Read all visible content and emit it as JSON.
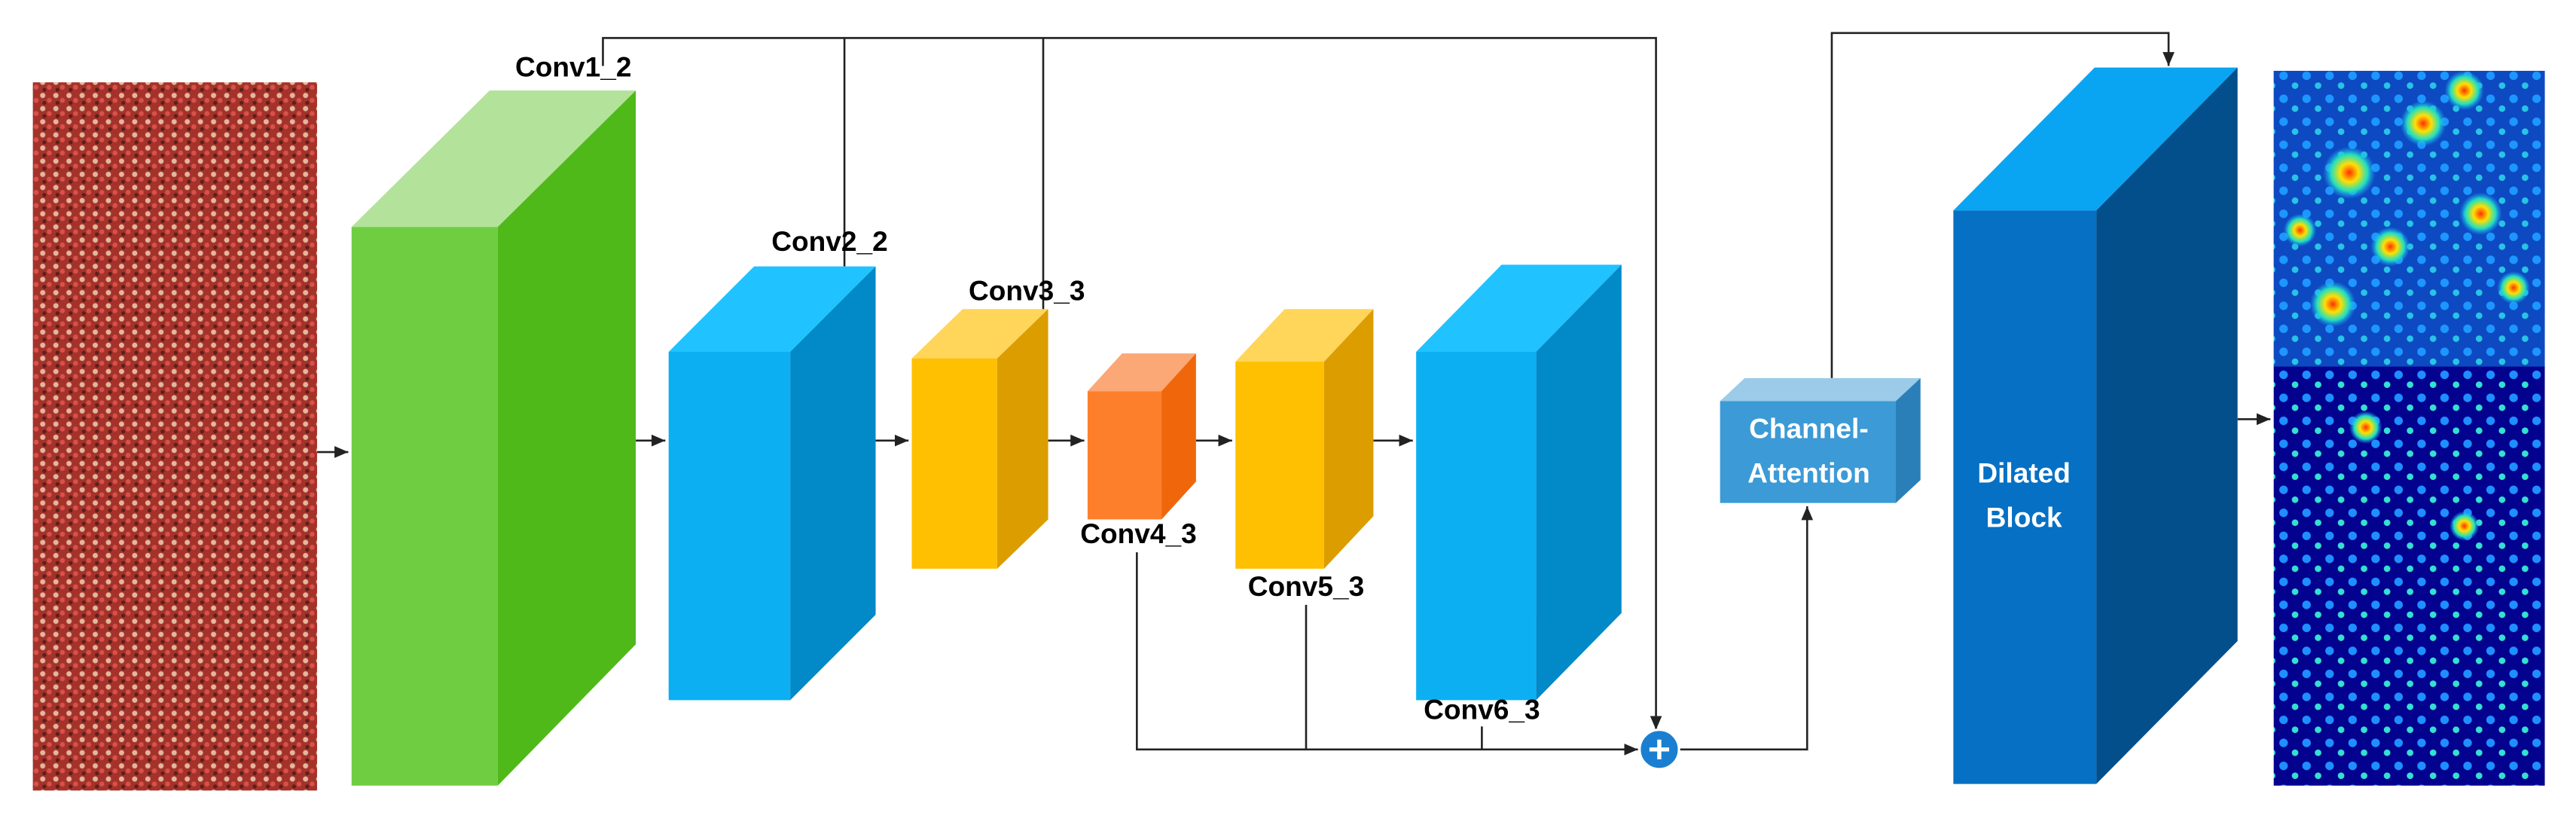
{
  "nodes": [
    {
      "label": "Conv1_2"
    },
    {
      "label": "Conv2_2"
    },
    {
      "label": "Conv3_3"
    },
    {
      "label": "Conv4_3"
    },
    {
      "label": "Conv5_3"
    },
    {
      "label": "Conv6_3"
    },
    {
      "label": [
        "Channel-",
        "Attention"
      ]
    },
    {
      "label": [
        "Dilated",
        "Block"
      ]
    }
  ]
}
